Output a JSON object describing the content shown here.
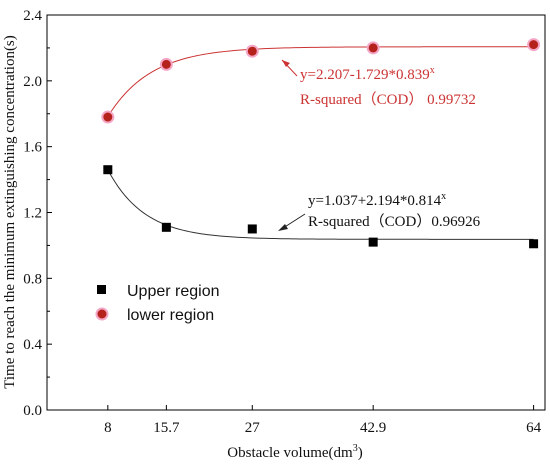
{
  "chart_data": {
    "type": "scatter",
    "xlabel": "Obstacle volume(dm",
    "xlabel_sup": "3",
    "xlabel_end": ")",
    "ylabel": "Time to reach the minimum extinguishing concentration(s)",
    "x_tick_labels": [
      "8",
      "15.7",
      "27",
      "42.9",
      "64"
    ],
    "y_tick_labels": [
      "0.0",
      "0.4",
      "0.8",
      "1.2",
      "1.6",
      "2.0",
      "2.4"
    ],
    "ylim": [
      0,
      2.4
    ],
    "x": [
      8,
      15.7,
      27,
      42.9,
      64
    ],
    "series": [
      {
        "name": "Upper region",
        "marker": "square",
        "color": "#000000",
        "values": [
          1.46,
          1.11,
          1.1,
          1.02,
          1.01
        ],
        "fit": {
          "a": 1.037,
          "b": 2.194,
          "c": 0.814
        },
        "fit_color": "#333333",
        "equation": "y=1.037+2.194*0.814",
        "equation_sup": "x",
        "r_squared": "R-squared（COD）0.96926"
      },
      {
        "name": "lower region",
        "marker": "circle",
        "color": "#b5221b",
        "values": [
          1.78,
          2.1,
          2.18,
          2.2,
          2.22
        ],
        "fit": {
          "a": 2.207,
          "b": -1.729,
          "c": 0.839
        },
        "fit_color": "#cc3333",
        "equation": "y=2.207-1.729*0.839",
        "equation_sup": "x",
        "r_squared": "R-squared（COD） 0.99732"
      }
    ],
    "grid": false,
    "legend_position": "bottom-left"
  }
}
